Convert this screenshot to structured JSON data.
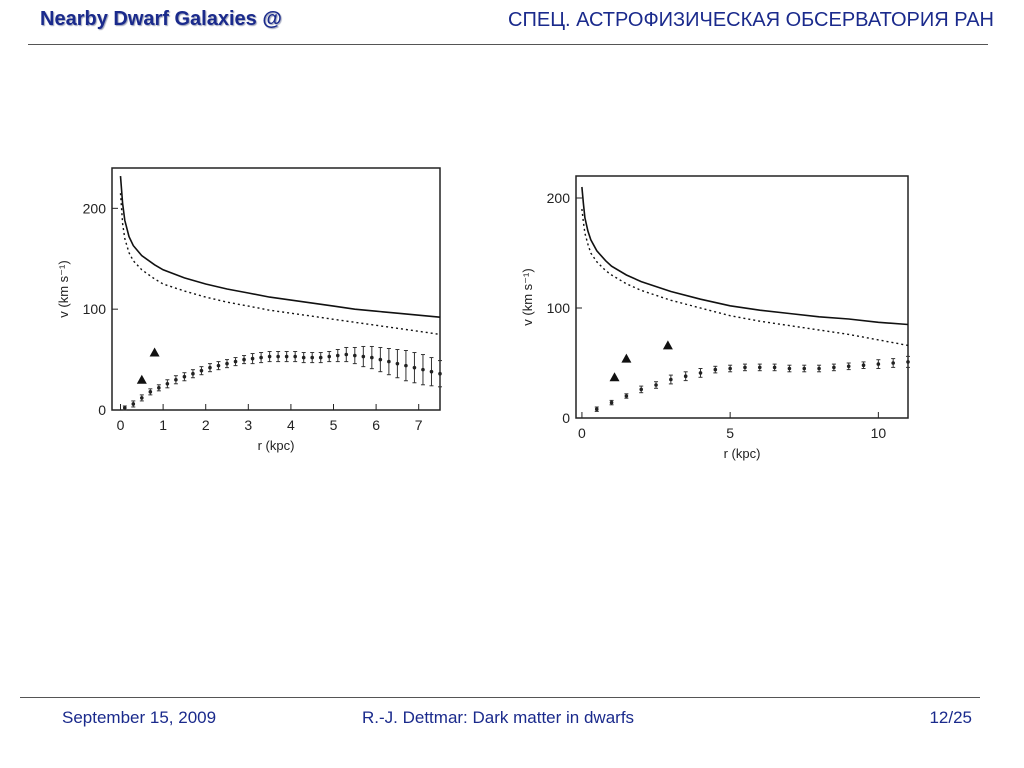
{
  "header": {
    "left": "Nearby Dwarf Galaxies @",
    "right": "СПЕЦ. АСТРОФИЗИЧЕСКАЯ ОБСЕРВАТОРИЯ РАН"
  },
  "footer": {
    "date": "September 15, 2009",
    "title": "R.-J. Dettmar: Dark matter in dwarfs",
    "page": "12/25"
  },
  "chart_data": [
    {
      "type": "line",
      "xlabel": "r (kpc)",
      "ylabel": "v (km s⁻¹)",
      "xlim": [
        -0.2,
        7.5
      ],
      "ylim": [
        0,
        240
      ],
      "xticks": [
        0,
        1,
        2,
        3,
        4,
        5,
        6,
        7
      ],
      "yticks": [
        0,
        100,
        200
      ],
      "grid": false,
      "series": [
        {
          "style": "solid",
          "x": [
            0.0,
            0.05,
            0.1,
            0.2,
            0.3,
            0.5,
            0.8,
            1.0,
            1.5,
            2.0,
            2.5,
            3.0,
            3.5,
            4.0,
            4.5,
            5.0,
            5.5,
            6.0,
            6.5,
            7.0,
            7.5
          ],
          "y": [
            232,
            205,
            188,
            172,
            163,
            153,
            144,
            139,
            131,
            125,
            120,
            116,
            112,
            109,
            106,
            103,
            100,
            98,
            96,
            94,
            92
          ]
        },
        {
          "style": "dotted",
          "x": [
            0.0,
            0.05,
            0.1,
            0.2,
            0.3,
            0.5,
            0.8,
            1.0,
            1.5,
            2.0,
            2.5,
            3.0,
            3.5,
            4.0,
            4.5,
            5.0,
            5.5,
            6.0,
            6.5,
            7.0,
            7.5
          ],
          "y": [
            215,
            185,
            170,
            156,
            148,
            139,
            130,
            125,
            118,
            112,
            107,
            103,
            99,
            96,
            93,
            90,
            87,
            84,
            81,
            78,
            75
          ]
        },
        {
          "style": "points-errorbars",
          "x": [
            0.1,
            0.3,
            0.5,
            0.7,
            0.9,
            1.1,
            1.3,
            1.5,
            1.7,
            1.9,
            2.1,
            2.3,
            2.5,
            2.7,
            2.9,
            3.1,
            3.3,
            3.5,
            3.7,
            3.9,
            4.1,
            4.3,
            4.5,
            4.7,
            4.9,
            5.1,
            5.3,
            5.5,
            5.7,
            5.9,
            6.1,
            6.3,
            6.5,
            6.7,
            6.9,
            7.1,
            7.3,
            7.5
          ],
          "y": [
            2,
            6,
            12,
            18,
            22,
            26,
            30,
            33,
            36,
            39,
            42,
            44,
            46,
            48,
            50,
            51,
            52,
            53,
            53,
            53,
            53,
            52,
            52,
            52,
            53,
            54,
            55,
            54,
            53,
            52,
            50,
            48,
            46,
            44,
            42,
            40,
            38,
            36
          ],
          "yerr": [
            2,
            3,
            3,
            3,
            3,
            4,
            4,
            4,
            4,
            4,
            4,
            4,
            4,
            4,
            4,
            5,
            5,
            5,
            5,
            5,
            5,
            5,
            5,
            5,
            5,
            6,
            7,
            8,
            10,
            11,
            12,
            13,
            14,
            15,
            15,
            15,
            14,
            13
          ]
        },
        {
          "style": "triangles",
          "x": [
            0.5,
            0.8
          ],
          "y": [
            30,
            57
          ]
        }
      ]
    },
    {
      "type": "line",
      "xlabel": "r (kpc)",
      "ylabel": "v (km s⁻¹)",
      "xlim": [
        -0.2,
        11
      ],
      "ylim": [
        0,
        220
      ],
      "xticks": [
        0,
        5,
        10
      ],
      "yticks": [
        0,
        100,
        200
      ],
      "grid": false,
      "series": [
        {
          "style": "solid",
          "x": [
            0.0,
            0.05,
            0.1,
            0.2,
            0.3,
            0.5,
            0.8,
            1.0,
            1.5,
            2.0,
            3.0,
            4.0,
            5.0,
            6.0,
            7.0,
            8.0,
            9.0,
            10.0,
            11.0
          ],
          "y": [
            210,
            195,
            182,
            170,
            162,
            152,
            143,
            138,
            130,
            124,
            115,
            108,
            102,
            98,
            95,
            92,
            90,
            87,
            85
          ]
        },
        {
          "style": "dotted",
          "x": [
            0.0,
            0.05,
            0.1,
            0.2,
            0.3,
            0.5,
            0.8,
            1.0,
            1.5,
            2.0,
            3.0,
            4.0,
            5.0,
            6.0,
            7.0,
            8.0,
            9.0,
            10.0,
            11.0
          ],
          "y": [
            190,
            178,
            168,
            158,
            150,
            142,
            134,
            130,
            122,
            116,
            107,
            100,
            93,
            88,
            84,
            80,
            76,
            71,
            66
          ]
        },
        {
          "style": "points-errorbars",
          "x": [
            0.5,
            1.0,
            1.5,
            2.0,
            2.5,
            3.0,
            3.5,
            4.0,
            4.5,
            5.0,
            5.5,
            6.0,
            6.5,
            7.0,
            7.5,
            8.0,
            8.5,
            9.0,
            9.5,
            10.0,
            10.5,
            11.0
          ],
          "y": [
            8,
            14,
            20,
            26,
            30,
            35,
            38,
            41,
            44,
            45,
            46,
            46,
            46,
            45,
            45,
            45,
            46,
            47,
            48,
            49,
            50,
            51
          ],
          "yerr": [
            2,
            2,
            2,
            3,
            3,
            4,
            4,
            4,
            3,
            3,
            3,
            3,
            3,
            3,
            3,
            3,
            3,
            3,
            3,
            4,
            4,
            5
          ]
        },
        {
          "style": "triangles",
          "x": [
            1.1,
            1.5,
            2.9
          ],
          "y": [
            37,
            54,
            66
          ]
        }
      ]
    }
  ]
}
